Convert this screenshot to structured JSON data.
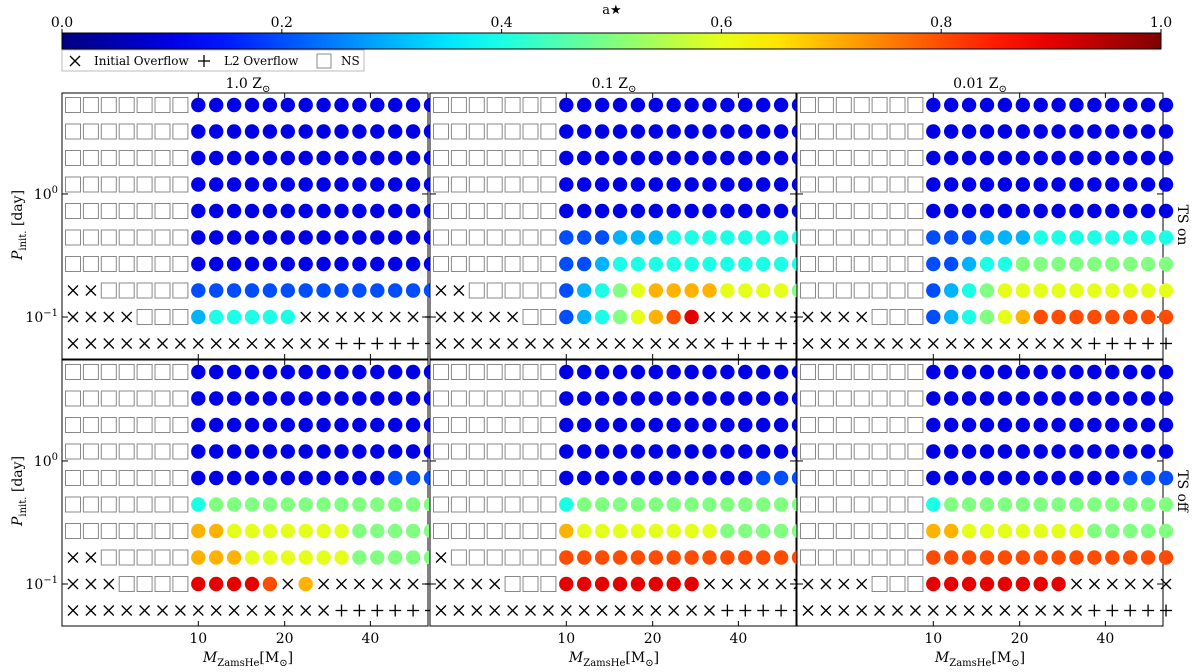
{
  "colorbar": {
    "label": "a★",
    "min": 0.0,
    "max": 1.0,
    "tick_values": [
      0.0,
      0.2,
      0.4,
      0.6,
      0.8,
      1.0
    ],
    "tick_labels": [
      "0.0",
      "0.2",
      "0.4",
      "0.6",
      "0.8",
      "1.0"
    ],
    "colormap": "jet"
  },
  "legend": {
    "placement": "top-left",
    "items": [
      {
        "key": "cross",
        "label": "Initial Overflow",
        "icon": "cross-icon"
      },
      {
        "key": "plus",
        "label": "L2 Overflow",
        "icon": "plus-icon"
      },
      {
        "key": "square",
        "label": "NS",
        "icon": "square-icon"
      }
    ]
  },
  "columns": [
    {
      "id": "z1",
      "label": "1.0",
      "sym": "Z",
      "sub": "⊙"
    },
    {
      "id": "z01",
      "label": "0.1",
      "sym": "Z",
      "sub": "⊙"
    },
    {
      "id": "z001",
      "label": "0.01",
      "sym": "Z",
      "sub": "⊙"
    }
  ],
  "rows": [
    {
      "id": "ts_on",
      "label": "TS on"
    },
    {
      "id": "ts_off",
      "label": "TS off"
    }
  ],
  "axes": {
    "xlabel_main": "M",
    "xlabel_sub": "ZamsHe",
    "xlabel_unit": "[M",
    "xlabel_unit_sub": "⊙",
    "xlabel_close": "]",
    "xticks": [
      10,
      20,
      40
    ],
    "xtick_labels": [
      "10",
      "20",
      "40"
    ],
    "xscale": "log",
    "ylabel_main": "P",
    "ylabel_sub": "init.",
    "ylabel_unit": " [day]",
    "yscale": "log",
    "ytick_labels": [
      {
        "base": "10",
        "exp": "0",
        "value": 1
      },
      {
        "base": "10",
        "exp": "−1",
        "value": 0.1
      }
    ]
  },
  "chart_data": {
    "type": "scatter",
    "x_masses_msun": [
      1.8,
      2.3,
      3.0,
      3.8,
      4.8,
      6.1,
      7.8,
      10,
      11.5,
      13.3,
      15.4,
      17.8,
      20.5,
      23.7,
      27.4,
      31.7,
      36.6,
      42.3,
      48.9,
      56.5,
      65.3
    ],
    "y_periods_day": [
      5.5,
      3.3,
      2.0,
      1.2,
      0.72,
      0.44,
      0.27,
      0.16,
      0.1,
      0.06
    ],
    "legend_symbols": {
      "X": "Initial Overflow",
      "+": "L2 Overflow",
      "S": "NS"
    },
    "grid_encoding": "rows are top-to-bottom periods; each string lists 21 masses; X=cross, +=plus, S=square, digit d = a* of (d/10)",
    "panels": [
      {
        "row": "TS on",
        "col": "1.0 Z⊙",
        "grid": [
          "SSSSSSS11111111111111",
          "SSSSSSS11111111111111",
          "SSSSSSS11111111111111",
          "SSSSSSS11111111111111",
          "SSSSSSS11111111111111",
          "SSSSSSS11111111111111",
          "SSSSSSS11111111111111",
          "XXSSSSS22222222222222",
          "XXXXSSS344444XXXXXXX+",
          "XXXXXXXXXXXXXXX++++++"
        ]
      },
      {
        "row": "TS on",
        "col": "0.1 Z⊙",
        "grid": [
          "SSSSSSS11111111111111",
          "SSSSSSS11111111111111",
          "SSSSSSS11111111111111",
          "SSSSSSS11111111111111",
          "SSSSSSS11111111111111",
          "SSSSSSS22233344444444",
          "SSSSSSS22344444444444",
          "XXSSSSS23456777766665",
          "XXXXXSS23456789XXXXXX",
          "XXXXXXXXXXXXXXXX+++++"
        ]
      },
      {
        "row": "TS on",
        "col": "0.01 Z⊙",
        "grid": [
          "SSSSSSS11111111111111",
          "SSSSSSS11111111111111",
          "SSSSSSS11111111111111",
          "SSSSSSS11111111111111",
          "SSSSSSS11111111111111",
          "SSSSSSS22233344444444",
          "SSSSSSS22344555555555",
          "SSSSSSS23456666666666",
          "XXXXSSS23456788888888",
          "XXXXXXXXXXXXXXXX+++++"
        ]
      },
      {
        "row": "TS off",
        "col": "1.0 Z⊙",
        "grid": [
          "SSSSSSS11111111111111",
          "SSSSSSS11111111111111",
          "SSSSSSS11111111111111",
          "SSSSSSS11111111111111",
          "SSSSSSS11111111111222",
          "SSSSSSS45555555555555",
          "SSSSSSS77666666655555",
          "XXSSSSS77766666655555",
          "XXXSSSS99998X7XXXXXX+",
          "XXXXXXXXXXXXXXX++++++"
        ]
      },
      {
        "row": "TS off",
        "col": "0.1 Z⊙",
        "grid": [
          "SSSSSSS11111111111111",
          "SSSSSSS11111111111111",
          "SSSSSSS11111111111111",
          "SSSSSSS11111111111111",
          "SSSSSSS11111111111222",
          "SSSSSSS45555555555555",
          "SSSSSSS76666666655555",
          "XSSSSSS88888888888888",
          "XXXXSSS99999999XXXXXX",
          "XXXXXXXXXXXXXXXX+++++"
        ]
      },
      {
        "row": "TS off",
        "col": "0.01 Z⊙",
        "grid": [
          "SSSSSSS11111111111111",
          "SSSSSSS11111111111111",
          "SSSSSSS11111111111111",
          "SSSSSSS11111111111111",
          "SSSSSSS11111111111222",
          "SSSSSSS45555555555555",
          "SSSSSSS77666666655555",
          "SSSSSSS88888888888888",
          "XXXXSSS99999999XXXXXX",
          "XXXXXXXXXXXXXXXX+++++"
        ]
      }
    ]
  }
}
